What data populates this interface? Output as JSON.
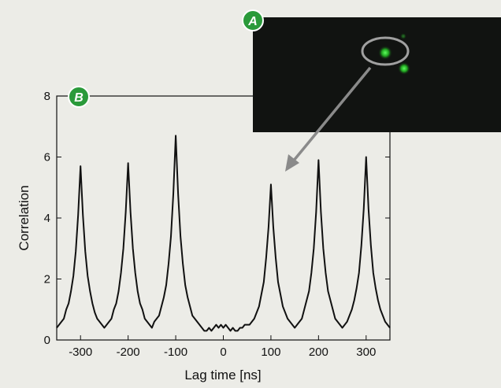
{
  "chart_data": {
    "type": "line",
    "xlabel": "Lag time [ns]",
    "ylabel": "Correlation",
    "annotations": [
      "A",
      "B"
    ],
    "x": [
      -350,
      -345,
      -340,
      -335,
      -330,
      -325,
      -320,
      -315,
      -310,
      -305,
      -300,
      -295,
      -290,
      -285,
      -280,
      -275,
      -270,
      -265,
      -260,
      -255,
      -250,
      -245,
      -240,
      -235,
      -230,
      -225,
      -220,
      -215,
      -210,
      -205,
      -200,
      -195,
      -190,
      -185,
      -180,
      -175,
      -170,
      -165,
      -160,
      -155,
      -150,
      -145,
      -140,
      -135,
      -130,
      -125,
      -120,
      -115,
      -110,
      -105,
      -100,
      -95,
      -90,
      -85,
      -80,
      -75,
      -70,
      -65,
      -60,
      -55,
      -50,
      -45,
      -40,
      -35,
      -30,
      -25,
      -20,
      -15,
      -10,
      -5,
      0,
      5,
      10,
      15,
      20,
      25,
      30,
      35,
      40,
      45,
      50,
      55,
      60,
      65,
      70,
      75,
      80,
      85,
      90,
      95,
      100,
      105,
      110,
      115,
      120,
      125,
      130,
      135,
      140,
      145,
      150,
      155,
      160,
      165,
      170,
      175,
      180,
      185,
      190,
      195,
      200,
      205,
      210,
      215,
      220,
      225,
      230,
      235,
      240,
      245,
      250,
      255,
      260,
      265,
      270,
      275,
      280,
      285,
      290,
      295,
      300,
      305,
      310,
      315,
      320,
      325,
      330,
      335,
      340,
      345,
      350
    ],
    "series": [
      {
        "color": "#111111",
        "values": [
          0.4,
          0.5,
          0.6,
          0.7,
          1.0,
          1.2,
          1.6,
          2.1,
          2.9,
          4.1,
          5.7,
          4.1,
          2.9,
          2.1,
          1.6,
          1.2,
          0.9,
          0.7,
          0.6,
          0.5,
          0.4,
          0.5,
          0.6,
          0.7,
          1.0,
          1.2,
          1.6,
          2.2,
          3.0,
          4.2,
          5.8,
          4.2,
          3.0,
          2.2,
          1.6,
          1.2,
          1.0,
          0.7,
          0.6,
          0.5,
          0.4,
          0.6,
          0.7,
          0.8,
          1.1,
          1.4,
          1.8,
          2.5,
          3.4,
          4.8,
          6.7,
          4.8,
          3.4,
          2.5,
          1.8,
          1.4,
          1.1,
          0.8,
          0.7,
          0.6,
          0.5,
          0.4,
          0.3,
          0.3,
          0.4,
          0.3,
          0.4,
          0.5,
          0.4,
          0.5,
          0.4,
          0.5,
          0.4,
          0.3,
          0.4,
          0.3,
          0.3,
          0.4,
          0.4,
          0.5,
          0.5,
          0.5,
          0.6,
          0.7,
          0.9,
          1.1,
          1.5,
          1.9,
          2.7,
          3.7,
          5.1,
          3.7,
          2.7,
          1.9,
          1.5,
          1.1,
          0.9,
          0.7,
          0.6,
          0.5,
          0.4,
          0.5,
          0.6,
          0.7,
          1.0,
          1.3,
          1.6,
          2.2,
          3.0,
          4.2,
          5.9,
          4.2,
          3.0,
          2.2,
          1.6,
          1.3,
          1.0,
          0.7,
          0.6,
          0.5,
          0.4,
          0.5,
          0.6,
          0.8,
          1.0,
          1.3,
          1.7,
          2.2,
          3.1,
          4.3,
          6.0,
          4.3,
          3.1,
          2.2,
          1.7,
          1.3,
          1.0,
          0.8,
          0.6,
          0.5,
          0.4
        ]
      }
    ],
    "xlim": [
      -350,
      350
    ],
    "xticks": [
      -300,
      -200,
      -100,
      0,
      100,
      200,
      300
    ],
    "ylim": [
      0,
      8
    ],
    "yticks": [
      0,
      2,
      4,
      6,
      8
    ]
  }
}
